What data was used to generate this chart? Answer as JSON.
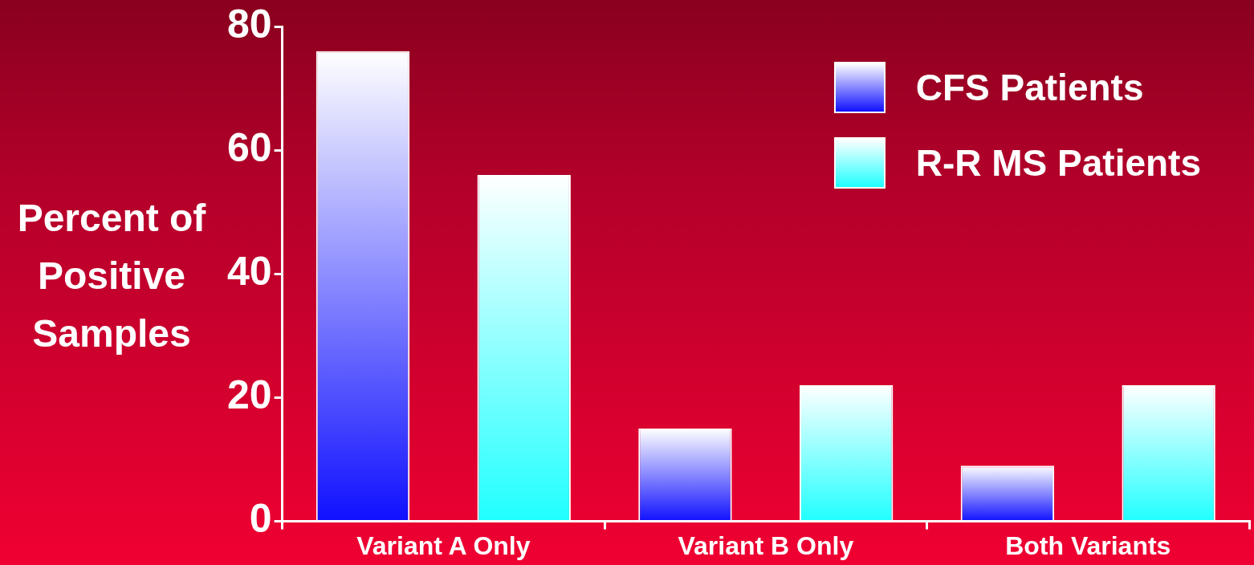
{
  "chart_data": {
    "type": "bar",
    "ylabel": "Percent of Positive Samples",
    "categories": [
      "Variant A Only",
      "Variant B Only",
      "Both Variants"
    ],
    "series": [
      {
        "name": "CFS Patients",
        "color": "#1010ff",
        "values": [
          76,
          15,
          9
        ]
      },
      {
        "name": "R-R MS Patients",
        "color": "#20ffff",
        "values": [
          56,
          22,
          22
        ]
      }
    ],
    "ylim": [
      0,
      80
    ],
    "yticks": [
      0,
      20,
      40,
      60,
      80
    ],
    "legend": "top right"
  }
}
